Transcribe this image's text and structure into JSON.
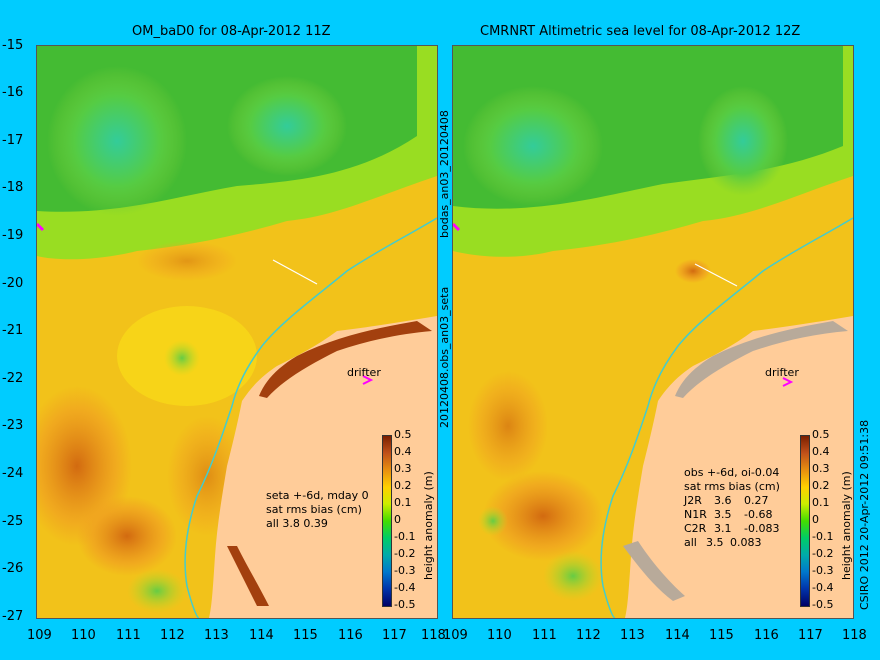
{
  "left_panel": {
    "title": "OM_baD0 for 08-Apr-2012 11Z",
    "stats": [
      "seta +-6d, mday 0",
      "sat rms bias (cm)",
      "all 3.8 0.39"
    ],
    "drifter_label": "drifter"
  },
  "right_panel": {
    "title": "CMRNRT Altimetric sea level  for 08-Apr-2012 12Z",
    "stats_header": [
      "obs +-6d, oi-0.04",
      "sat rms bias (cm)"
    ],
    "stats_rows": [
      {
        "name": "J2R",
        "rms": "3.6",
        "bias": "0.27"
      },
      {
        "name": "N1R",
        "rms": "3.5",
        "bias": "-0.68"
      },
      {
        "name": "C2R",
        "rms": "3.1",
        "bias": "-0.083"
      },
      {
        "name": "all",
        "rms": "3.5",
        "bias": "0.083"
      }
    ],
    "drifter_label": "drifter"
  },
  "y_ticks": [
    "-15",
    "-16",
    "-17",
    "-18",
    "-19",
    "-20",
    "-21",
    "-22",
    "-23",
    "-24",
    "-25",
    "-26",
    "-27"
  ],
  "x_ticks": [
    "109",
    "110",
    "111",
    "112",
    "113",
    "114",
    "115",
    "116",
    "117",
    "118"
  ],
  "colorbar": {
    "label": "height anomaly (m)",
    "ticks": [
      "0.5",
      "0.4",
      "0.3",
      "0.2",
      "0.1",
      "0",
      "-0.1",
      "-0.2",
      "-0.3",
      "-0.4",
      "-0.5"
    ],
    "colors": [
      "#7a1f00",
      "#c0501a",
      "#e88f10",
      "#ffd000",
      "#ccee00",
      "#44dd00",
      "#00cc66",
      "#00aaaa",
      "#0077cc",
      "#0033aa",
      "#000066"
    ]
  },
  "middle_label": "20120408.obs_an03_seta",
  "middle_label_top": "bodas_an03_20120408",
  "credit": "CSIRO 2012   20-Apr-2012 09:51:38",
  "colors": {
    "land": "#ffcc99",
    "background": "#00ccff",
    "shelf_line": "#44cccc",
    "drifter_marker": "#ff00ff"
  }
}
